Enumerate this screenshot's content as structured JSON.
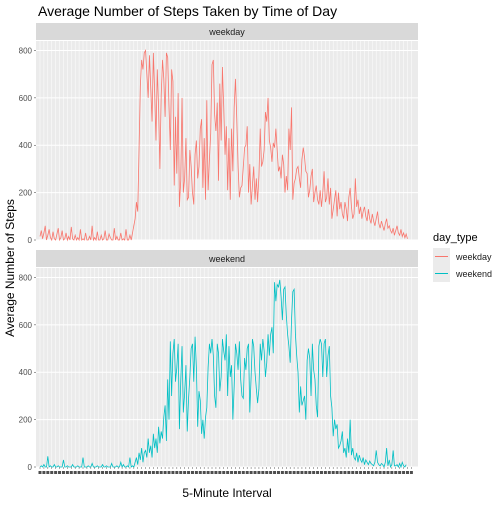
{
  "chart_data": {
    "type": "line",
    "title": "Average Number of Steps Taken by Time of Day",
    "xlabel": "5-Minute Interval",
    "ylabel": "Average Number of Steps",
    "ylim": [
      0,
      840
    ],
    "yticks": [
      0,
      200,
      400,
      600,
      800
    ],
    "x_intervals": 288,
    "grid": true,
    "facet_by": "day_type",
    "legend": {
      "title": "day_type",
      "position": "right",
      "entries": [
        "weekday",
        "weekend"
      ]
    },
    "colors": {
      "weekday": "#F8766D",
      "weekend": "#00BFC4",
      "strip": "#D9D9D9",
      "panel": "#EBEBEB"
    },
    "series": [
      {
        "name": "weekday",
        "values": [
          15,
          40,
          5,
          30,
          60,
          0,
          20,
          45,
          10,
          0,
          35,
          5,
          0,
          25,
          50,
          0,
          10,
          40,
          0,
          5,
          30,
          0,
          15,
          0,
          55,
          5,
          0,
          20,
          0,
          10,
          0,
          45,
          0,
          5,
          0,
          30,
          0,
          0,
          15,
          0,
          60,
          0,
          10,
          0,
          35,
          0,
          0,
          20,
          0,
          5,
          40,
          0,
          0,
          25,
          10,
          0,
          0,
          50,
          0,
          15,
          0,
          0,
          30,
          0,
          5,
          0,
          45,
          0,
          0,
          20,
          0,
          30,
          60,
          90,
          160,
          120,
          380,
          650,
          760,
          720,
          790,
          800,
          700,
          600,
          780,
          640,
          500,
          790,
          620,
          420,
          720,
          560,
          300,
          610,
          760,
          680,
          520,
          790,
          770,
          560,
          380,
          720,
          670,
          230,
          520,
          280,
          620,
          140,
          250,
          600,
          200,
          260,
          430,
          170,
          180,
          380,
          310,
          200,
          150,
          360,
          420,
          260,
          310,
          470,
          510,
          220,
          430,
          170,
          590,
          210,
          340,
          450,
          740,
          760,
          530,
          460,
          580,
          250,
          660,
          420,
          730,
          560,
          360,
          480,
          210,
          430,
          170,
          470,
          290,
          560,
          680,
          510,
          310,
          180,
          220,
          230,
          310,
          390,
          400,
          480,
          200,
          320,
          150,
          230,
          310,
          170,
          260,
          160,
          270,
          470,
          310,
          330,
          380,
          540,
          500,
          600,
          420,
          390,
          330,
          410,
          390,
          470,
          380,
          290,
          310,
          260,
          360,
          320,
          200,
          270,
          210,
          470,
          380,
          560,
          170,
          240,
          260,
          300,
          310,
          260,
          220,
          340,
          390,
          350,
          290,
          280,
          180,
          210,
          270,
          300,
          160,
          200,
          230,
          170,
          150,
          210,
          140,
          200,
          290,
          160,
          180,
          260,
          150,
          220,
          90,
          130,
          170,
          210,
          100,
          200,
          130,
          160,
          110,
          90,
          160,
          130,
          80,
          180,
          220,
          140,
          90,
          110,
          260,
          140,
          170,
          110,
          140,
          90,
          120,
          140,
          100,
          80,
          130,
          90,
          70,
          110,
          80,
          60,
          90,
          120,
          70,
          50,
          80,
          60,
          40,
          70,
          90,
          50,
          60,
          40,
          30,
          50,
          20,
          40,
          60,
          30,
          20,
          45,
          15,
          30,
          10,
          25,
          5
        ],
        "color": "#F8766D"
      },
      {
        "name": "weekend",
        "values": [
          0,
          5,
          0,
          10,
          0,
          0,
          45,
          0,
          5,
          0,
          0,
          10,
          0,
          0,
          5,
          0,
          0,
          0,
          30,
          0,
          0,
          5,
          0,
          0,
          0,
          10,
          0,
          0,
          0,
          5,
          0,
          0,
          0,
          40,
          0,
          0,
          0,
          5,
          0,
          0,
          15,
          0,
          0,
          0,
          5,
          0,
          0,
          0,
          10,
          0,
          0,
          5,
          0,
          0,
          0,
          15,
          0,
          0,
          0,
          5,
          0,
          0,
          20,
          0,
          10,
          0,
          0,
          5,
          0,
          40,
          0,
          5,
          0,
          20,
          40,
          10,
          60,
          30,
          80,
          20,
          60,
          70,
          40,
          120,
          60,
          90,
          40,
          140,
          80,
          120,
          60,
          170,
          100,
          150,
          120,
          210,
          260,
          110,
          370,
          200,
          530,
          300,
          480,
          540,
          360,
          420,
          520,
          160,
          360,
          510,
          230,
          310,
          430,
          150,
          290,
          380,
          500,
          520,
          360,
          550,
          420,
          170,
          320,
          280,
          140,
          200,
          120,
          210,
          250,
          420,
          520,
          480,
          540,
          470,
          300,
          250,
          520,
          480,
          320,
          380,
          540,
          490,
          450,
          560,
          300,
          510,
          380,
          430,
          200,
          340,
          520,
          480,
          410,
          530,
          370,
          300,
          290,
          460,
          410,
          500,
          520,
          230,
          380,
          540,
          510,
          400,
          330,
          270,
          330,
          520,
          450,
          540,
          490,
          380,
          440,
          560,
          470,
          560,
          590,
          480,
          780,
          700,
          770,
          760,
          790,
          720,
          620,
          750,
          760,
          640,
          560,
          510,
          440,
          620,
          740,
          750,
          560,
          470,
          400,
          230,
          340,
          260,
          280,
          300,
          200,
          450,
          500,
          460,
          300,
          520,
          410,
          370,
          260,
          210,
          510,
          540,
          520,
          380,
          520,
          540,
          380,
          470,
          510,
          300,
          250,
          130,
          200,
          160,
          180,
          80,
          90,
          110,
          150,
          60,
          80,
          40,
          120,
          60,
          200,
          50,
          80,
          40,
          30,
          60,
          20,
          50,
          30,
          20,
          40,
          10,
          30,
          20,
          10,
          25,
          15,
          10,
          5,
          20,
          70,
          20,
          10,
          5,
          15,
          10,
          0,
          20,
          80,
          5,
          30,
          0,
          10,
          70,
          5,
          5,
          10,
          0,
          15,
          0,
          20,
          5,
          0,
          10
        ],
        "color": "#00BFC4"
      }
    ]
  }
}
